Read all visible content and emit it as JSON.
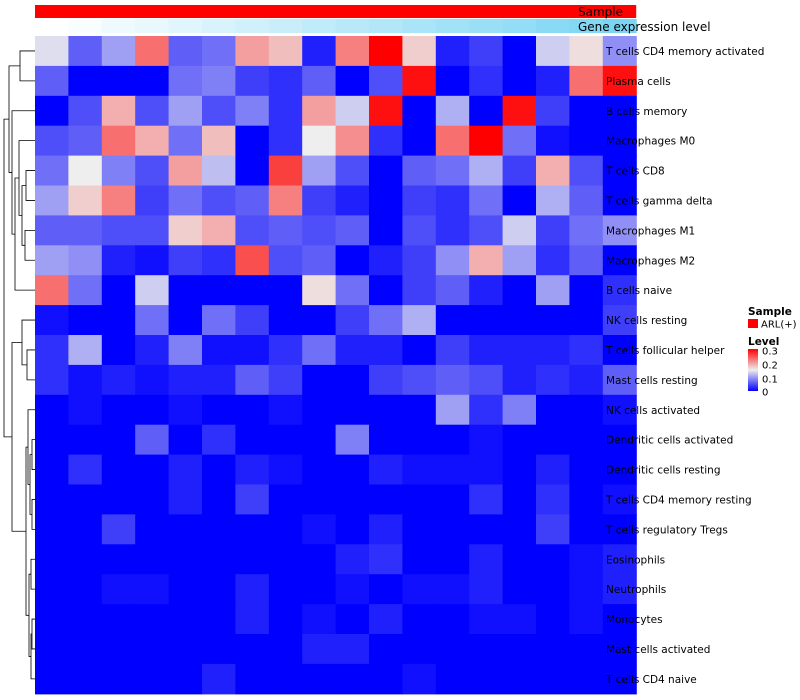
{
  "chart_data": {
    "type": "heatmap",
    "title": "",
    "annotations": {
      "sample": {
        "label": "Sample",
        "color": "#ff0000"
      },
      "gene": {
        "label": "Gene expression level",
        "values": [
          0.0,
          0.04,
          0.09,
          0.13,
          0.18,
          0.22,
          0.27,
          0.31,
          0.36,
          0.4,
          0.44,
          0.49,
          0.53,
          0.58,
          0.62,
          0.67,
          0.71,
          0.76
        ]
      }
    },
    "rows": [
      "T cells CD4 memory activated",
      "Plasma cells",
      "B cells memory",
      "Macrophages M0",
      "T cells CD8",
      "T cells gamma delta",
      "Macrophages M1",
      "Macrophages M2",
      "B cells naive",
      "NK cells resting",
      "T cells follicular helper",
      "Mast cells resting",
      "NK cells activated",
      "Dendritic cells activated",
      "Dendritic cells resting",
      "T cells CD4 memory resting",
      "T cells regulatory  Tregs",
      "Eosinophils",
      "Neutrophils",
      "Monocytes",
      "Mast cells activated",
      "T cells CD4 naive"
    ],
    "values": [
      [
        0.14,
        0.06,
        0.1,
        0.23,
        0.06,
        0.07,
        0.2,
        0.18,
        0.02,
        0.22,
        0.3,
        0.17,
        0.02,
        0.04,
        0.0,
        0.13,
        0.16,
        0.09
      ],
      [
        0.06,
        0.0,
        0.0,
        0.0,
        0.07,
        0.08,
        0.04,
        0.03,
        0.06,
        0.0,
        0.05,
        0.29,
        0.0,
        0.03,
        0.0,
        0.02,
        0.23,
        0.29
      ],
      [
        0.0,
        0.05,
        0.19,
        0.05,
        0.1,
        0.05,
        0.08,
        0.03,
        0.2,
        0.13,
        0.29,
        0.0,
        0.11,
        0.0,
        0.29,
        0.04,
        0.0,
        0.0
      ],
      [
        0.05,
        0.06,
        0.23,
        0.19,
        0.07,
        0.18,
        0.0,
        0.03,
        0.15,
        0.21,
        0.03,
        0.0,
        0.23,
        0.3,
        0.07,
        0.01,
        0.0,
        0.0
      ],
      [
        0.07,
        0.15,
        0.08,
        0.05,
        0.2,
        0.12,
        0.0,
        0.26,
        0.1,
        0.05,
        0.0,
        0.06,
        0.07,
        0.11,
        0.04,
        0.19,
        0.05,
        0.0
      ],
      [
        0.1,
        0.17,
        0.22,
        0.04,
        0.07,
        0.05,
        0.06,
        0.22,
        0.04,
        0.02,
        0.0,
        0.04,
        0.03,
        0.07,
        0.0,
        0.11,
        0.06,
        0.0
      ],
      [
        0.06,
        0.06,
        0.05,
        0.05,
        0.17,
        0.19,
        0.05,
        0.06,
        0.05,
        0.06,
        0.0,
        0.05,
        0.03,
        0.05,
        0.13,
        0.04,
        0.07,
        0.09
      ],
      [
        0.1,
        0.09,
        0.02,
        0.01,
        0.04,
        0.03,
        0.25,
        0.05,
        0.06,
        0.0,
        0.02,
        0.04,
        0.09,
        0.19,
        0.1,
        0.03,
        0.06,
        0.0
      ],
      [
        0.23,
        0.07,
        0.0,
        0.13,
        0.0,
        0.0,
        0.0,
        0.0,
        0.16,
        0.07,
        0.0,
        0.04,
        0.06,
        0.02,
        0.0,
        0.1,
        0.0,
        0.03
      ],
      [
        0.01,
        0.0,
        0.0,
        0.07,
        0.0,
        0.07,
        0.04,
        0.0,
        0.0,
        0.04,
        0.07,
        0.11,
        0.0,
        0.0,
        0.0,
        0.0,
        0.0,
        0.04
      ],
      [
        0.03,
        0.11,
        0.0,
        0.02,
        0.08,
        0.01,
        0.01,
        0.03,
        0.07,
        0.02,
        0.02,
        0.0,
        0.04,
        0.02,
        0.02,
        0.02,
        0.03,
        0.0
      ],
      [
        0.03,
        0.01,
        0.02,
        0.01,
        0.02,
        0.02,
        0.06,
        0.04,
        0.0,
        0.0,
        0.04,
        0.05,
        0.06,
        0.05,
        0.02,
        0.03,
        0.02,
        0.06
      ],
      [
        0.0,
        0.01,
        0.0,
        0.0,
        0.01,
        0.0,
        0.0,
        0.01,
        0.0,
        0.0,
        0.0,
        0.0,
        0.1,
        0.03,
        0.08,
        0.0,
        0.0,
        0.01
      ],
      [
        0.0,
        0.0,
        0.0,
        0.06,
        0.0,
        0.03,
        0.0,
        0.0,
        0.0,
        0.08,
        0.0,
        0.0,
        0.0,
        0.01,
        0.0,
        0.0,
        0.0,
        0.0
      ],
      [
        0.0,
        0.03,
        0.0,
        0.0,
        0.02,
        0.0,
        0.02,
        0.01,
        0.0,
        0.0,
        0.02,
        0.01,
        0.01,
        0.01,
        0.0,
        0.02,
        0.0,
        0.0
      ],
      [
        0.0,
        0.0,
        0.0,
        0.0,
        0.02,
        0.0,
        0.04,
        0.0,
        0.0,
        0.0,
        0.0,
        0.0,
        0.0,
        0.03,
        0.0,
        0.03,
        0.0,
        0.01
      ],
      [
        0.0,
        0.0,
        0.04,
        0.0,
        0.0,
        0.0,
        0.0,
        0.0,
        0.01,
        0.0,
        0.02,
        0.0,
        0.0,
        0.0,
        0.0,
        0.04,
        0.0,
        0.0
      ],
      [
        0.0,
        0.0,
        0.0,
        0.0,
        0.0,
        0.0,
        0.0,
        0.0,
        0.0,
        0.02,
        0.03,
        0.0,
        0.0,
        0.02,
        0.0,
        0.0,
        0.01,
        0.02
      ],
      [
        0.0,
        0.0,
        0.01,
        0.01,
        0.0,
        0.0,
        0.02,
        0.0,
        0.0,
        0.01,
        0.0,
        0.01,
        0.01,
        0.02,
        0.0,
        0.0,
        0.01,
        0.02
      ],
      [
        0.0,
        0.0,
        0.0,
        0.0,
        0.0,
        0.0,
        0.02,
        0.0,
        0.01,
        0.0,
        0.02,
        0.0,
        0.0,
        0.01,
        0.01,
        0.0,
        0.01,
        0.0
      ],
      [
        0.0,
        0.0,
        0.0,
        0.0,
        0.0,
        0.0,
        0.0,
        0.0,
        0.02,
        0.02,
        0.0,
        0.0,
        0.0,
        0.0,
        0.0,
        0.0,
        0.0,
        0.0
      ],
      [
        0.0,
        0.0,
        0.0,
        0.0,
        0.0,
        0.02,
        0.0,
        0.0,
        0.0,
        0.0,
        0.0,
        0.01,
        0.0,
        0.0,
        0.0,
        0.0,
        0.0,
        0.0
      ]
    ],
    "color_scale": {
      "min": 0,
      "mid": 0.15,
      "max": 0.3,
      "low": "#0000ff",
      "midcolor": "#eeeeee",
      "high": "#ff0000"
    },
    "legend": {
      "sample_title": "Sample",
      "sample_entry": "ARL(+)",
      "level_title": "Level",
      "level_ticks": [
        "0.3",
        "0.2",
        "0.1",
        "0"
      ],
      "placement": "right"
    },
    "dendrogram": "rows"
  }
}
